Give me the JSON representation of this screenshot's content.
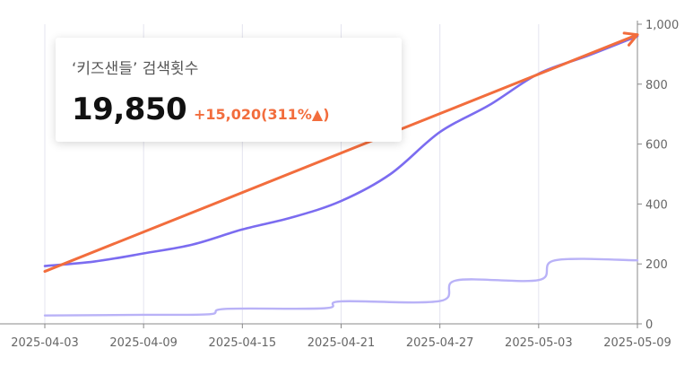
{
  "card": {
    "title": "‘키즈샌들’ 검색횟수",
    "value": "19,850",
    "delta": "+15,020(311%▲)"
  },
  "colors": {
    "main_series": "#7b6cf0",
    "secondary_series": "#b9b2f7",
    "trend_arrow": "#f26d3d",
    "grid": "#e4e4ef",
    "axis": "#888888"
  },
  "chart_data": {
    "type": "line",
    "x_ticks": [
      "2025-04-03",
      "2025-04-09",
      "2025-04-15",
      "2025-04-21",
      "2025-04-27",
      "2025-05-03",
      "2025-05-09"
    ],
    "y_ticks": [
      "0",
      "200",
      "400",
      "600",
      "800",
      "1,000"
    ],
    "xlim": [
      "2025-04-03",
      "2025-05-09"
    ],
    "ylim": [
      0,
      1000
    ],
    "y_axis_position": "right",
    "grid": "vertical",
    "series": [
      {
        "values": [
          [
            "2025-04-03",
            193
          ],
          [
            "2025-04-06",
            208
          ],
          [
            "2025-04-09",
            235
          ],
          [
            "2025-04-12",
            265
          ],
          [
            "2025-04-15",
            315
          ],
          [
            "2025-04-18",
            355
          ],
          [
            "2025-04-21",
            410
          ],
          [
            "2025-04-24",
            500
          ],
          [
            "2025-04-27",
            640
          ],
          [
            "2025-04-30",
            730
          ],
          [
            "2025-05-03",
            835
          ],
          [
            "2025-05-06",
            895
          ],
          [
            "2025-05-09",
            960
          ]
        ]
      },
      {
        "values": [
          [
            "2025-04-03",
            28
          ],
          [
            "2025-04-09",
            30
          ],
          [
            "2025-04-13",
            32
          ],
          [
            "2025-04-14",
            50
          ],
          [
            "2025-04-20",
            52
          ],
          [
            "2025-04-21",
            75
          ],
          [
            "2025-04-27",
            76
          ],
          [
            "2025-04-28",
            145
          ],
          [
            "2025-05-03",
            146
          ],
          [
            "2025-05-04",
            212
          ],
          [
            "2025-05-09",
            212
          ]
        ]
      }
    ],
    "annotations": [
      {
        "type": "arrow",
        "from": [
          "2025-04-03",
          175
        ],
        "to": [
          "2025-05-09",
          965
        ]
      }
    ]
  }
}
